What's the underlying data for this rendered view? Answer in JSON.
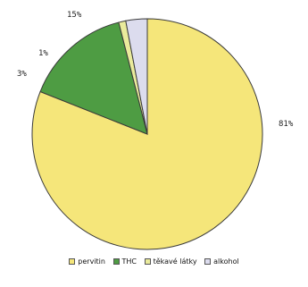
{
  "chart_data": {
    "type": "pie",
    "slices": [
      {
        "label": "pervitin",
        "value": 81,
        "value_label": "81%",
        "color": "#f5e67a"
      },
      {
        "label": "THC",
        "value": 15,
        "value_label": "15%",
        "color": "#4e9c43"
      },
      {
        "label": "těkavé látky",
        "value": 1,
        "value_label": "1%",
        "color": "#eaeb9c"
      },
      {
        "label": "alkohol",
        "value": 3,
        "value_label": "3%",
        "color": "#dcdcee"
      }
    ],
    "legend": {
      "placement": "bottom"
    }
  }
}
